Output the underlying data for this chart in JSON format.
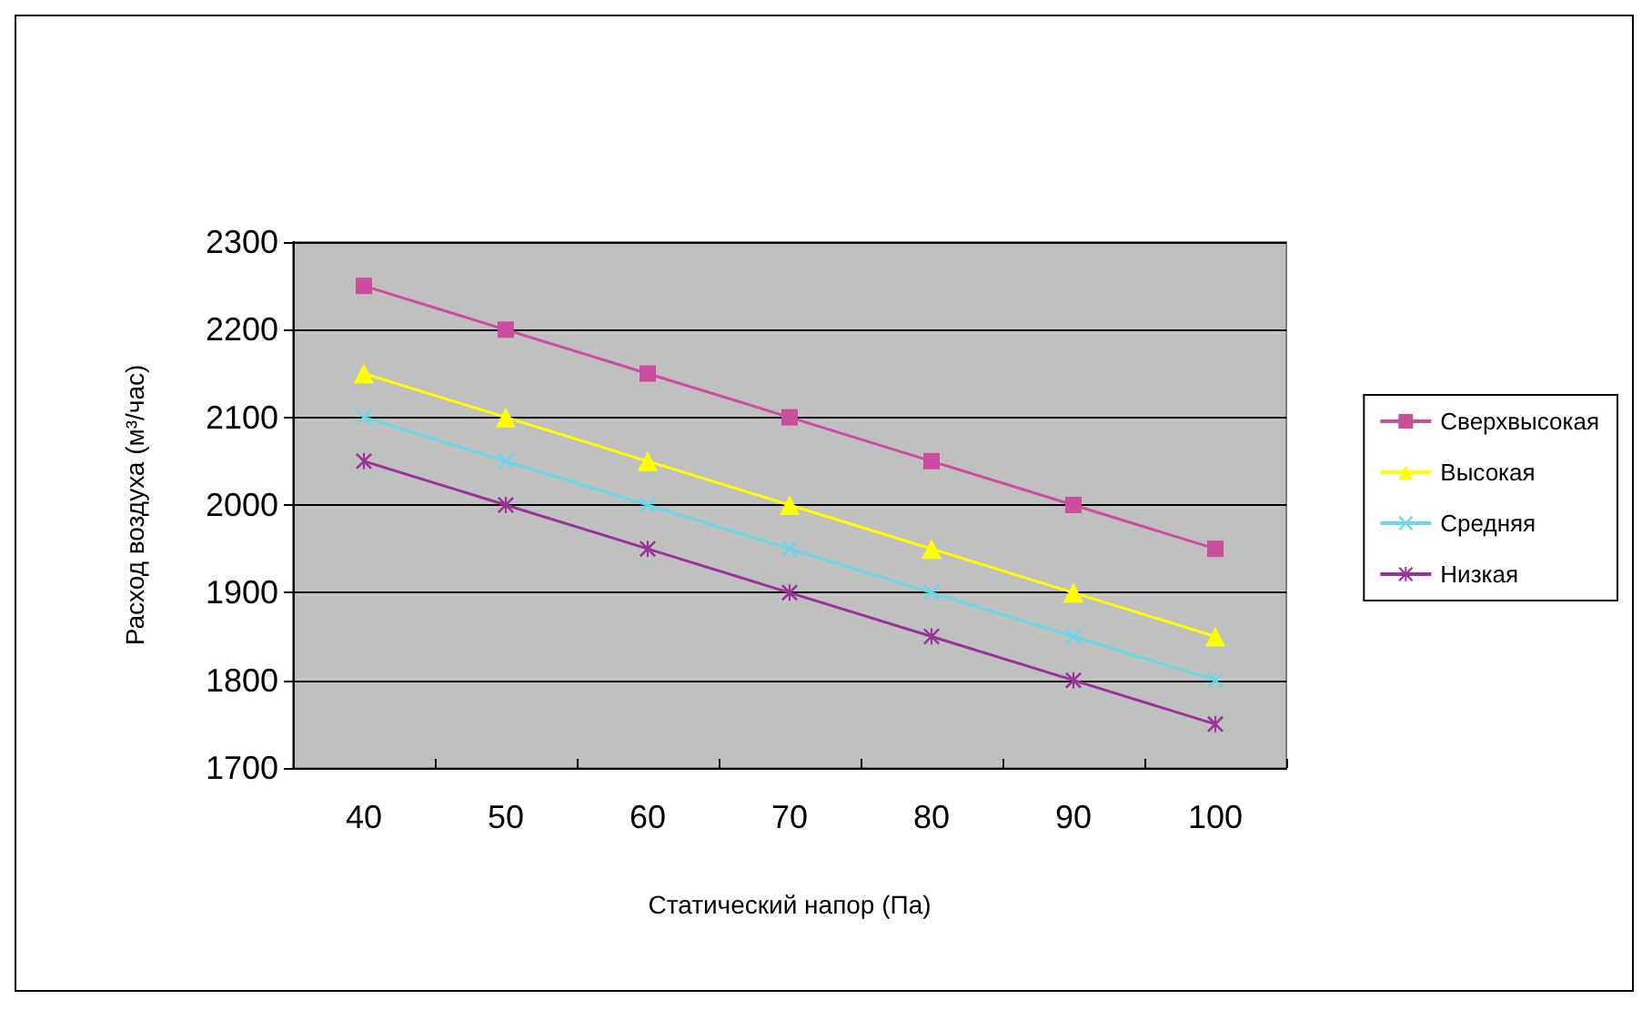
{
  "chart_data": {
    "type": "line",
    "xlabel": "Статический напор (Па)",
    "ylabel": "Расход воздуха (м³/час)",
    "categories": [
      "40",
      "50",
      "60",
      "70",
      "80",
      "90",
      "100"
    ],
    "series": [
      {
        "name": "Сверхвысокая",
        "color": "#cc4c9e",
        "marker": "square",
        "values": [
          2250,
          2200,
          2150,
          2100,
          2050,
          2000,
          1950
        ]
      },
      {
        "name": "Высокая",
        "color": "#ffff00",
        "marker": "triangle",
        "values": [
          2150,
          2100,
          2050,
          2000,
          1950,
          1900,
          1850
        ]
      },
      {
        "name": "Средняя",
        "color": "#66d9e8",
        "marker": "cross",
        "values": [
          2100,
          2050,
          2000,
          1950,
          1900,
          1850,
          1800
        ]
      },
      {
        "name": "Низкая",
        "color": "#993399",
        "marker": "star",
        "values": [
          2050,
          2000,
          1950,
          1900,
          1850,
          1800,
          1750
        ]
      }
    ],
    "ylim": [
      1700,
      2300
    ],
    "yticks": [
      1700,
      1800,
      1900,
      2000,
      2100,
      2200,
      2300
    ],
    "grid": "y",
    "legend": "right",
    "line_style": "solid"
  }
}
